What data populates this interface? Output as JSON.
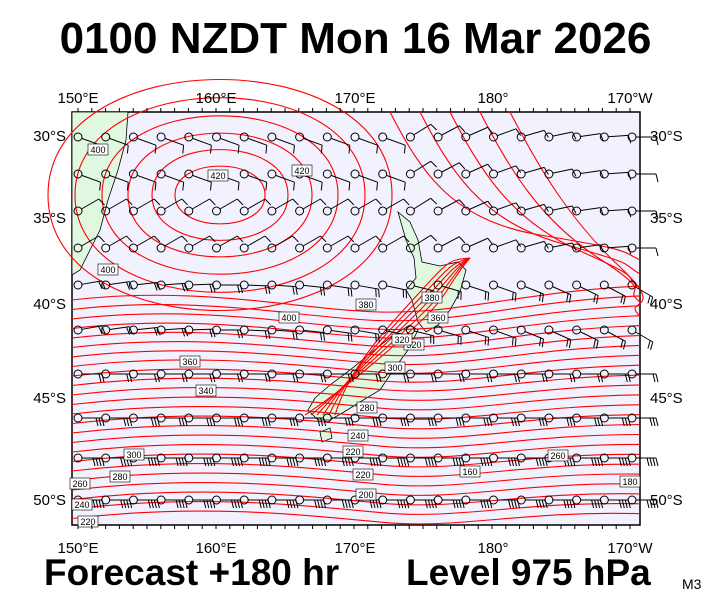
{
  "header": {
    "title": "0100 NZDT Mon 16 Mar 2026"
  },
  "footer": {
    "forecast": "Forecast +180 hr",
    "level": "Level 975 hPa",
    "model": "M3"
  },
  "map": {
    "longitude_labels": [
      "150°E",
      "160°E",
      "170°E",
      "180°",
      "170°W"
    ],
    "latitude_labels": [
      "30°S",
      "35°S",
      "40°S",
      "45°S",
      "50°S"
    ],
    "contour_labels": [
      "400",
      "420",
      "420",
      "400",
      "400",
      "380",
      "360",
      "340",
      "380",
      "360",
      "320",
      "300",
      "320",
      "280",
      "300",
      "280",
      "260",
      "240",
      "220",
      "220",
      "200",
      "160",
      "180",
      "260",
      "240",
      "220"
    ],
    "colors": {
      "ocean": "#f2f2ff",
      "land": "#e0f8e0",
      "contour": "#ff0000",
      "barb": "#000000"
    }
  }
}
